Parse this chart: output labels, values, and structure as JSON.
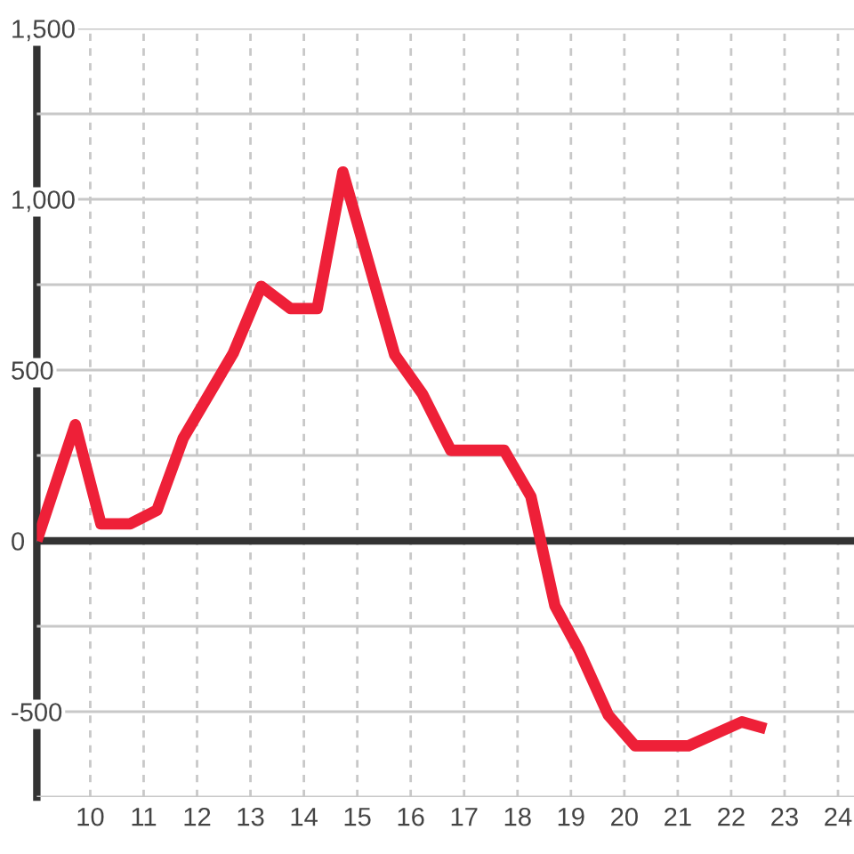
{
  "chart_data": {
    "type": "line",
    "x": [
      9.0,
      9.72,
      10.2,
      10.75,
      11.25,
      11.74,
      12.68,
      13.2,
      13.75,
      14.25,
      14.73,
      15.7,
      16.22,
      16.75,
      17.75,
      18.25,
      18.7,
      19.15,
      19.7,
      20.2,
      21.2,
      22.2,
      22.65
    ],
    "series": [
      {
        "color": "#ee2038",
        "values": [
          0,
          340,
          50,
          50,
          90,
          300,
          550,
          745,
          680,
          680,
          1080,
          545,
          430,
          265,
          265,
          130,
          -190,
          -320,
          -510,
          -600,
          -600,
          -530,
          -550
        ]
      }
    ],
    "xlim": [
      9,
      24.3
    ],
    "xticks": [
      10,
      11,
      12,
      13,
      14,
      15,
      16,
      17,
      18,
      19,
      20,
      21,
      22,
      23,
      24
    ],
    "ylim": [
      -750,
      1500
    ],
    "yticks": [
      {
        "value": 1500,
        "label": "1,500"
      },
      {
        "value": 1250,
        "label": null
      },
      {
        "value": 1000,
        "label": "1,000"
      },
      {
        "value": 750,
        "label": null
      },
      500,
      {
        "value": 250,
        "label": null
      },
      0,
      {
        "value": -250,
        "label": null
      },
      {
        "value": -500,
        "label": "-500"
      },
      {
        "value": -750,
        "label": null
      }
    ],
    "ref_lines": [
      {
        "axis": "y",
        "value": 0,
        "color": "#333333"
      }
    ],
    "grid": true,
    "marker": "none",
    "line_style": "solid"
  }
}
